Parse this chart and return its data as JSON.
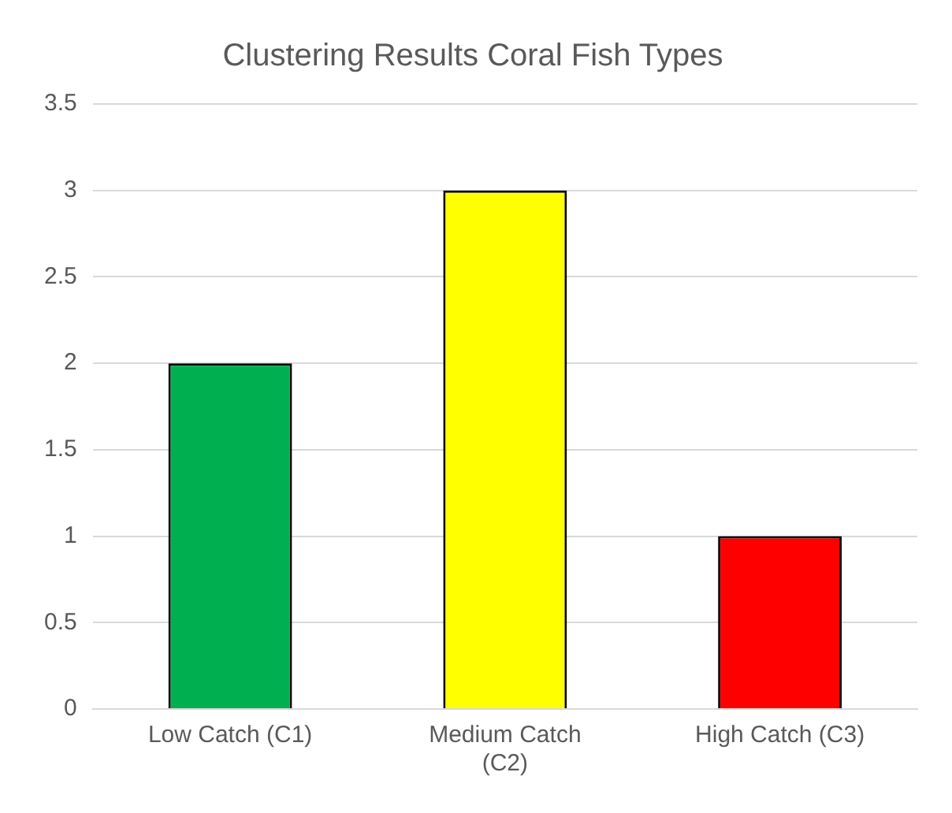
{
  "chart_data": {
    "type": "bar",
    "title": "Clustering Results Coral Fish Types",
    "categories": [
      "Low Catch (C1)",
      "Medium Catch (C2)",
      "High Catch (C3)"
    ],
    "values": [
      2,
      3,
      1
    ],
    "colors": [
      "#00b050",
      "#ffff00",
      "#ff0000"
    ],
    "ylim": [
      0,
      3.5
    ],
    "yticks": [
      0,
      0.5,
      1,
      1.5,
      2,
      2.5,
      3,
      3.5
    ],
    "grid": "y",
    "legend": false
  }
}
